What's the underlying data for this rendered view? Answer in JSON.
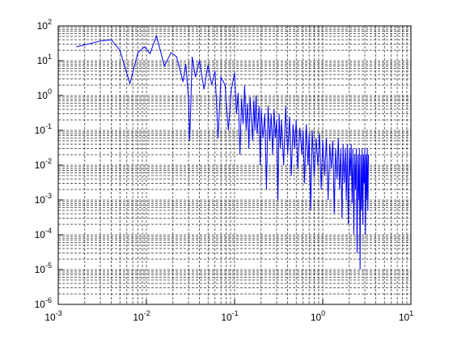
{
  "chart_data": {
    "type": "line",
    "xscale": "log",
    "yscale": "log",
    "grid": true,
    "minor_grid": true,
    "xlim": [
      0.001,
      10
    ],
    "ylim": [
      1e-06,
      100
    ],
    "xticks": [
      {
        "value": 0.001,
        "label": "10",
        "sup": "-3"
      },
      {
        "value": 0.01,
        "label": "10",
        "sup": "-2"
      },
      {
        "value": 0.1,
        "label": "10",
        "sup": "-1"
      },
      {
        "value": 1,
        "label": "10",
        "sup": "0"
      },
      {
        "value": 10,
        "label": "10",
        "sup": "1"
      }
    ],
    "yticks": [
      {
        "value": 1e-06,
        "label": "10",
        "sup": "-6"
      },
      {
        "value": 1e-05,
        "label": "10",
        "sup": "-5"
      },
      {
        "value": 0.0001,
        "label": "10",
        "sup": "-4"
      },
      {
        "value": 0.001,
        "label": "10",
        "sup": "-3"
      },
      {
        "value": 0.01,
        "label": "10",
        "sup": "-2"
      },
      {
        "value": 0.1,
        "label": "10",
        "sup": "-1"
      },
      {
        "value": 1,
        "label": "10",
        "sup": "0"
      },
      {
        "value": 10,
        "label": "10",
        "sup": "1"
      },
      {
        "value": 100,
        "label": "10",
        "sup": "2"
      }
    ],
    "series": [
      {
        "color": "#0000ff",
        "x": [
          0.0016,
          0.0032,
          0.004,
          0.005,
          0.0065,
          0.008,
          0.0095,
          0.011,
          0.013,
          0.016,
          0.019,
          0.022,
          0.026,
          0.028,
          0.03,
          0.031,
          0.033,
          0.036,
          0.04,
          0.045,
          0.05,
          0.055,
          0.06,
          0.065,
          0.07,
          0.078,
          0.085,
          0.092,
          0.1,
          0.105,
          0.11,
          0.115,
          0.12,
          0.125,
          0.13,
          0.135,
          0.14,
          0.145,
          0.15,
          0.155,
          0.16,
          0.165,
          0.17,
          0.175,
          0.18,
          0.19,
          0.195,
          0.2,
          0.21,
          0.22,
          0.23,
          0.24,
          0.25,
          0.26,
          0.27,
          0.28,
          0.29,
          0.3,
          0.31,
          0.32,
          0.33,
          0.34,
          0.36,
          0.38,
          0.4,
          0.42,
          0.44,
          0.46,
          0.48,
          0.5,
          0.52,
          0.55,
          0.58,
          0.6,
          0.62,
          0.65,
          0.68,
          0.7,
          0.73,
          0.76,
          0.8,
          0.84,
          0.88,
          0.92,
          0.96,
          1.0,
          1.05,
          1.1,
          1.15,
          1.2,
          1.25,
          1.3,
          1.35,
          1.4,
          1.45,
          1.5,
          1.55,
          1.6,
          1.65,
          1.7,
          1.75,
          1.8,
          1.85,
          1.9,
          1.95,
          2.0,
          2.05,
          2.1,
          2.15,
          2.2,
          2.25,
          2.3,
          2.35,
          2.4,
          2.45,
          2.5,
          2.55,
          2.6,
          2.65,
          2.7,
          2.75,
          2.8,
          2.85,
          2.9,
          2.95,
          3.0,
          3.05,
          3.1,
          3.15,
          3.2,
          3.25,
          3.3
        ],
        "values": [
          25,
          38,
          40,
          20,
          2.2,
          17,
          25,
          16,
          52,
          7,
          17,
          13,
          2.5,
          8,
          0.8,
          0.05,
          13,
          3.4,
          10,
          1.5,
          7.6,
          2,
          5,
          0.06,
          3.4,
          2,
          0.1,
          1.5,
          4.5,
          0.3,
          1.2,
          0.02,
          0.8,
          0.15,
          2,
          0.1,
          0.6,
          0.03,
          0.9,
          0.2,
          0.05,
          0.7,
          0.1,
          1,
          0.08,
          0.5,
          0.01,
          0.4,
          0.06,
          0.3,
          0.002,
          0.5,
          0.05,
          0.3,
          0.02,
          0.4,
          0.06,
          0.2,
          0.001,
          0.3,
          0.03,
          0.2,
          0.01,
          0.5,
          0.02,
          0.25,
          0.005,
          0.15,
          0.03,
          0.2,
          0.008,
          0.12,
          0.02,
          0.1,
          0.003,
          0.15,
          0.01,
          0.08,
          0.0005,
          0.1,
          0.005,
          0.06,
          0.01,
          0.08,
          0.002,
          0.05,
          0.005,
          0.06,
          0.001,
          0.04,
          0.008,
          0.05,
          0.0004,
          0.03,
          0.004,
          0.06,
          0.002,
          0.03,
          0.0003,
          0.04,
          0.003,
          0.03,
          0.001,
          0.04,
          0.0002,
          0.03,
          0.005,
          0.04,
          0.0008,
          0.03,
          0.0001,
          0.02,
          0.002,
          0.03,
          3e-05,
          0.02,
          0.001,
          0.03,
          1e-05,
          0.02,
          0.0005,
          0.03,
          0.0002,
          0.02,
          0.003,
          0.03,
          0.0001,
          0.02,
          0.001,
          0.03,
          0.0005,
          0.02
        ]
      }
    ]
  }
}
